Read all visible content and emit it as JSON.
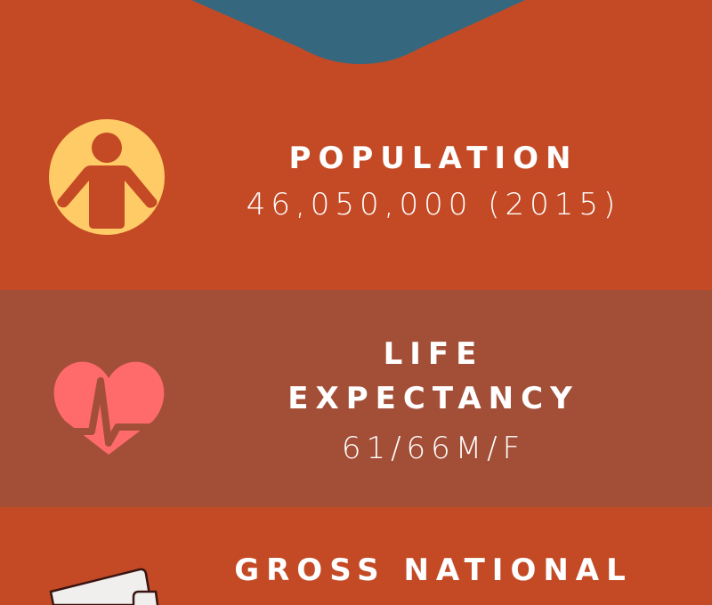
{
  "colors": {
    "background": "#C44A25",
    "band": "#A34F38",
    "banner": "#35687E",
    "person_icon": "#FFCB67",
    "heart_icon": "#FF6B6B",
    "wallet": "#F0EFED"
  },
  "sections": [
    {
      "icon": "person-icon",
      "title": "POPULATION",
      "value": "46,050,000 (2015)"
    },
    {
      "icon": "heart-pulse-icon",
      "title_line1": "LIFE",
      "title_line2": "EXPECTANCY",
      "value": "61/66M/F"
    },
    {
      "icon": "wallet-icon",
      "title": "GROSS NATIONAL"
    }
  ]
}
